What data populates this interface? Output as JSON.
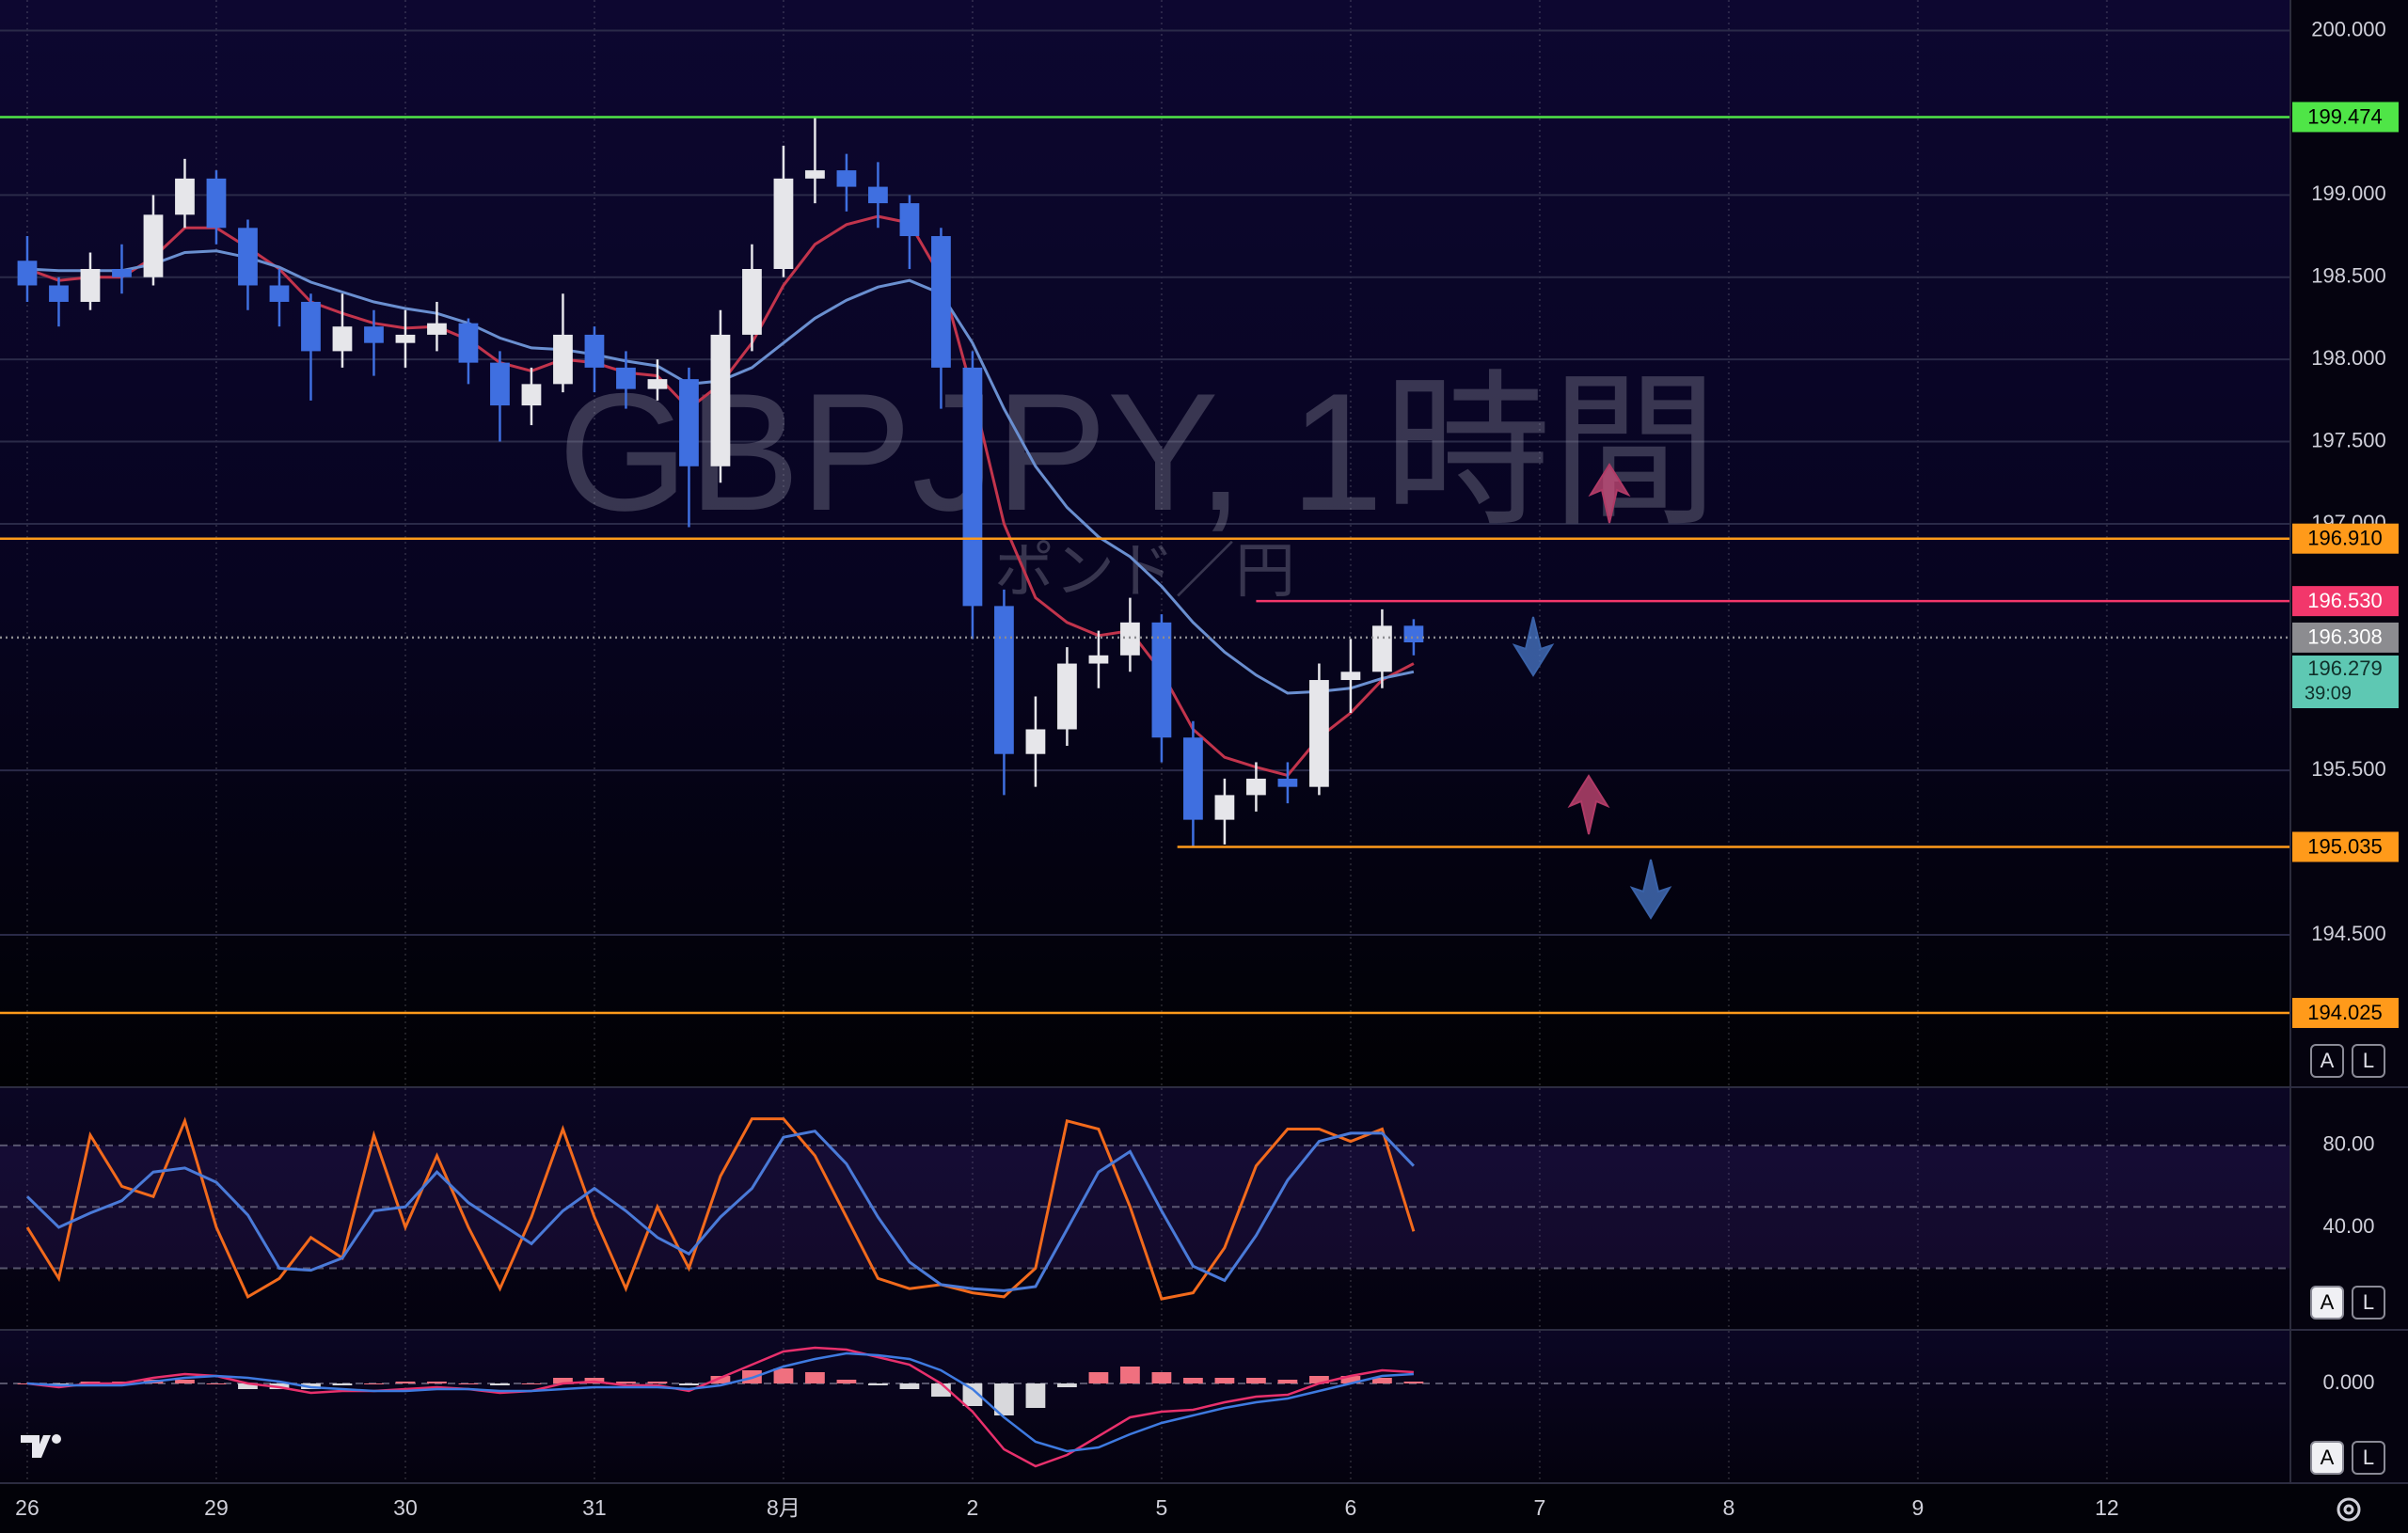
{
  "chart_data": [
    {
      "type": "candlestick",
      "title": "GBPJPY, 1時間",
      "subtitle": "ポンド／円",
      "x": [
        0,
        4,
        8,
        12,
        16,
        20,
        24,
        28,
        32,
        36,
        40,
        44,
        48,
        52,
        56,
        60,
        64,
        68,
        72,
        76,
        80,
        84,
        88,
        92,
        96,
        100,
        104,
        108,
        112,
        116,
        120,
        124,
        128,
        132,
        136,
        140,
        144,
        148,
        152,
        156,
        160,
        164,
        168,
        172,
        176
      ],
      "xlim": [
        -3.46,
        287.3
      ],
      "xticks": [
        {
          "value": 0,
          "label": "26"
        },
        {
          "value": 24,
          "label": "29"
        },
        {
          "value": 48,
          "label": "30"
        },
        {
          "value": 72,
          "label": "31"
        },
        {
          "value": 96,
          "label": "8月"
        },
        {
          "value": 120,
          "label": "2"
        },
        {
          "value": 144,
          "label": "5"
        },
        {
          "value": 168,
          "label": "6"
        },
        {
          "value": 192,
          "label": "7"
        },
        {
          "value": 216,
          "label": "8"
        },
        {
          "value": 240,
          "label": "9"
        },
        {
          "value": 264,
          "label": "12"
        }
      ],
      "open": [
        198.6,
        198.45,
        198.35,
        198.55,
        198.5,
        198.88,
        199.1,
        198.8,
        198.45,
        198.35,
        198.05,
        198.2,
        198.1,
        198.15,
        198.22,
        197.98,
        197.72,
        197.85,
        198.15,
        197.95,
        197.82,
        197.88,
        197.35,
        198.15,
        198.55,
        199.1,
        199.15,
        199.05,
        198.95,
        198.75,
        197.95,
        196.5,
        195.6,
        195.75,
        196.15,
        196.2,
        196.4,
        195.7,
        195.2,
        195.35,
        195.45,
        195.4,
        196.05,
        196.1,
        196.38
      ],
      "high": [
        198.75,
        198.5,
        198.65,
        198.7,
        199.0,
        199.22,
        199.15,
        198.85,
        198.55,
        198.4,
        198.4,
        198.3,
        198.3,
        198.35,
        198.25,
        198.05,
        197.95,
        198.4,
        198.2,
        198.05,
        198.0,
        197.95,
        198.3,
        198.7,
        199.3,
        199.474,
        199.25,
        199.2,
        199.0,
        198.8,
        198.05,
        196.6,
        195.95,
        196.25,
        196.35,
        196.55,
        196.45,
        195.8,
        195.45,
        195.55,
        195.55,
        196.15,
        196.3,
        196.48,
        196.42
      ],
      "low": [
        198.35,
        198.2,
        198.3,
        198.4,
        198.45,
        198.8,
        198.7,
        198.3,
        198.2,
        197.75,
        197.95,
        197.9,
        197.95,
        198.05,
        197.85,
        197.5,
        197.6,
        197.8,
        197.8,
        197.7,
        197.75,
        196.98,
        197.25,
        198.05,
        198.5,
        198.95,
        198.9,
        198.8,
        198.55,
        197.7,
        196.3,
        195.35,
        195.4,
        195.65,
        196.0,
        196.1,
        195.55,
        195.035,
        195.05,
        195.25,
        195.3,
        195.35,
        195.85,
        196.0,
        196.2
      ],
      "close": [
        198.45,
        198.35,
        198.55,
        198.5,
        198.88,
        199.1,
        198.8,
        198.45,
        198.35,
        198.05,
        198.2,
        198.1,
        198.15,
        198.22,
        197.98,
        197.72,
        197.85,
        198.15,
        197.95,
        197.82,
        197.88,
        197.35,
        198.15,
        198.55,
        199.1,
        199.15,
        199.05,
        198.95,
        198.75,
        197.95,
        196.5,
        195.6,
        195.75,
        196.15,
        196.2,
        196.4,
        195.7,
        195.2,
        195.35,
        195.45,
        195.4,
        196.05,
        196.1,
        196.38,
        196.279
      ],
      "up_color": "#e6e6ea",
      "down_color": "#3f6fe0",
      "series": [
        {
          "color": "#c2344c",
          "values": [
            198.55,
            198.48,
            198.5,
            198.5,
            198.62,
            198.8,
            198.8,
            198.68,
            198.55,
            198.35,
            198.28,
            198.22,
            198.19,
            198.2,
            198.12,
            197.98,
            197.93,
            198.0,
            197.98,
            197.92,
            197.9,
            197.7,
            197.85,
            198.1,
            198.45,
            198.7,
            198.82,
            198.87,
            198.83,
            198.5,
            197.8,
            197.0,
            196.55,
            196.4,
            196.32,
            196.35,
            196.1,
            195.75,
            195.58,
            195.52,
            195.47,
            195.7,
            195.85,
            196.05,
            196.15
          ]
        },
        {
          "color": "#6a8fd0",
          "values": [
            198.55,
            198.54,
            198.54,
            198.54,
            198.58,
            198.65,
            198.66,
            198.62,
            198.56,
            198.47,
            198.41,
            198.35,
            198.31,
            198.28,
            198.22,
            198.13,
            198.07,
            198.06,
            198.03,
            197.99,
            197.96,
            197.85,
            197.87,
            197.95,
            198.1,
            198.25,
            198.36,
            198.44,
            198.48,
            198.4,
            198.1,
            197.7,
            197.35,
            197.1,
            196.92,
            196.8,
            196.62,
            196.4,
            196.22,
            196.08,
            195.97,
            195.98,
            196.0,
            196.06,
            196.1
          ]
        }
      ],
      "ylim": [
        193.579,
        200.186
      ],
      "yticks": [
        {
          "value": 200,
          "label": "200.000"
        },
        {
          "value": 199,
          "label": "199.000"
        },
        {
          "value": 198.5,
          "label": "198.500"
        },
        {
          "value": 198,
          "label": "198.000"
        },
        {
          "value": 197.5,
          "label": "197.500"
        },
        {
          "value": 197,
          "label": "197.000"
        },
        {
          "value": 195.5,
          "label": "195.500"
        },
        {
          "value": 194.5,
          "label": "194.500"
        }
      ],
      "levels": [
        {
          "value": 199.474,
          "label": "199.474",
          "color": "#4fe547",
          "text_color": "#000000"
        },
        {
          "value": 196.91,
          "label": "196.910",
          "color": "#ff9a1a",
          "text_color": "#000000"
        },
        {
          "value": 196.53,
          "label": "196.530",
          "color": "#f2376b",
          "text_color": "#ffffff",
          "from": 156
        },
        {
          "value": 196.308,
          "label": "196.308",
          "color": "#8c8c90",
          "text_color": "#ffffff",
          "style": "dotted"
        },
        {
          "value": 196.279,
          "label": "196.279",
          "countdown": "39:09",
          "color": "#5ec8b3",
          "text_color": "#10302a",
          "line": false
        },
        {
          "value": 195.035,
          "label": "195.035",
          "color": "#ff9a1a",
          "text_color": "#000000",
          "from": 146
        },
        {
          "value": 194.025,
          "label": "194.025",
          "color": "#ff9a1a",
          "text_color": "#000000"
        }
      ],
      "scale_buttons": [
        "A",
        "L"
      ]
    },
    {
      "type": "line",
      "x": [
        0,
        4,
        8,
        12,
        16,
        20,
        24,
        28,
        32,
        36,
        40,
        44,
        48,
        52,
        56,
        60,
        64,
        68,
        72,
        76,
        80,
        84,
        88,
        92,
        96,
        100,
        104,
        108,
        112,
        116,
        120,
        124,
        128,
        132,
        136,
        140,
        144,
        148,
        152,
        156,
        160,
        164,
        168,
        172,
        176
      ],
      "series": [
        {
          "color": "#f26a1c",
          "values": [
            40,
            15,
            85,
            60,
            55,
            92,
            40,
            6,
            15,
            35,
            25,
            85,
            40,
            75,
            40,
            10,
            45,
            88,
            45,
            10,
            50,
            20,
            65,
            93,
            93,
            75,
            45,
            15,
            10,
            12,
            8,
            6,
            20,
            92,
            88,
            50,
            5,
            8,
            30,
            70,
            88,
            88,
            82,
            88,
            38
          ]
        },
        {
          "color": "#4a7ad8",
          "values": [
            55,
            40,
            47,
            53,
            67,
            69,
            62,
            46,
            20,
            19,
            25,
            48,
            50,
            67,
            52,
            42,
            32,
            48,
            59,
            48,
            35,
            27,
            45,
            59,
            84,
            87,
            71,
            45,
            23,
            12,
            10,
            9,
            11,
            39,
            67,
            77,
            48,
            21,
            14,
            36,
            63,
            82,
            86,
            86,
            70
          ]
        }
      ],
      "ylim": [
        -9.66,
        108
      ],
      "yticks": [
        {
          "value": 80,
          "label": "80.00"
        },
        {
          "value": 40,
          "label": "40.00"
        }
      ],
      "band": [
        20,
        80
      ],
      "levels": [
        80,
        50,
        20
      ],
      "scale_buttons": [
        "A",
        "L"
      ]
    },
    {
      "type": "macd",
      "x": [
        0,
        4,
        8,
        12,
        16,
        20,
        24,
        28,
        32,
        36,
        40,
        44,
        48,
        52,
        56,
        60,
        64,
        68,
        72,
        76,
        80,
        84,
        88,
        92,
        96,
        100,
        104,
        108,
        112,
        116,
        120,
        124,
        128,
        132,
        136,
        140,
        144,
        148,
        152,
        156,
        160,
        164,
        168,
        172,
        176
      ],
      "histogram": {
        "up_color": "#f0707f",
        "down_color": "#d8d8dc",
        "values": [
          0,
          -0.01,
          0.01,
          0.01,
          0.02,
          0.02,
          0,
          -0.03,
          -0.03,
          -0.03,
          -0.01,
          0,
          0.01,
          0.01,
          0,
          -0.01,
          0,
          0.03,
          0.03,
          0.01,
          0.01,
          -0.01,
          0.04,
          0.07,
          0.08,
          0.06,
          0.02,
          -0.01,
          -0.03,
          -0.07,
          -0.12,
          -0.17,
          -0.13,
          -0.02,
          0.06,
          0.09,
          0.06,
          0.03,
          0.03,
          0.03,
          0.02,
          0.04,
          0.04,
          0.03,
          0.01
        ]
      },
      "series": [
        {
          "color": "#e8306c",
          "values": [
            0,
            -0.02,
            0,
            0,
            0.03,
            0.05,
            0.04,
            0,
            -0.02,
            -0.05,
            -0.04,
            -0.04,
            -0.03,
            -0.02,
            -0.03,
            -0.05,
            -0.04,
            0,
            0.01,
            -0.01,
            -0.01,
            -0.04,
            0.03,
            0.1,
            0.17,
            0.19,
            0.18,
            0.14,
            0.1,
            0,
            -0.15,
            -0.35,
            -0.44,
            -0.38,
            -0.28,
            -0.18,
            -0.15,
            -0.14,
            -0.1,
            -0.07,
            -0.06,
            0,
            0.04,
            0.07,
            0.06
          ]
        },
        {
          "color": "#3e7ae0",
          "values": [
            0,
            -0.01,
            -0.01,
            -0.01,
            0.01,
            0.03,
            0.04,
            0.03,
            0.01,
            -0.02,
            -0.03,
            -0.04,
            -0.04,
            -0.03,
            -0.03,
            -0.04,
            -0.04,
            -0.03,
            -0.02,
            -0.02,
            -0.02,
            -0.03,
            -0.01,
            0.03,
            0.09,
            0.13,
            0.16,
            0.15,
            0.13,
            0.07,
            -0.03,
            -0.18,
            -0.31,
            -0.36,
            -0.34,
            -0.27,
            -0.21,
            -0.17,
            -0.13,
            -0.1,
            -0.08,
            -0.04,
            0,
            0.04,
            0.05
          ]
        }
      ],
      "ylim": [
        -0.525,
        0.28
      ],
      "yticks": [
        {
          "value": 0,
          "label": "0.000"
        }
      ],
      "scale_buttons": [
        "A",
        "L"
      ]
    }
  ]
}
